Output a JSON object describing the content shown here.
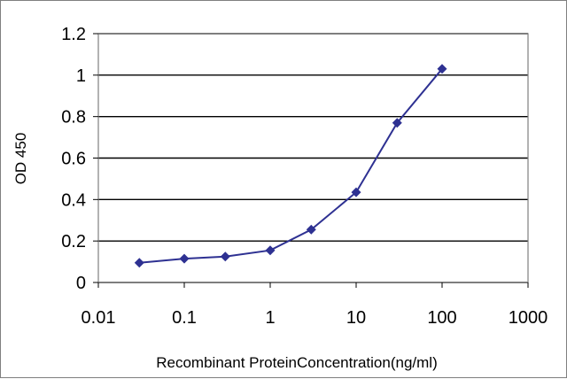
{
  "chart_data": {
    "type": "line",
    "title": "",
    "xlabel": "Recombinant ProteinConcentration(ng/ml)",
    "ylabel": "OD 450",
    "x_scale": "log",
    "xlim": [
      0.01,
      1000
    ],
    "ylim": [
      0,
      1.2
    ],
    "x_ticks": [
      "0.01",
      "0.1",
      "1",
      "10",
      "100",
      "1000"
    ],
    "y_ticks": [
      "0",
      "0.2",
      "0.4",
      "0.6",
      "0.8",
      "1",
      "1.2"
    ],
    "grid": "horizontal",
    "legend": "none",
    "series": [
      {
        "color": "#2e3192",
        "marker": "diamond",
        "x": [
          0.03,
          0.1,
          0.3,
          1,
          3,
          10,
          30,
          100
        ],
        "y": [
          0.095,
          0.115,
          0.125,
          0.155,
          0.255,
          0.435,
          0.77,
          1.03
        ]
      }
    ],
    "plot_background": "#ffffff",
    "grid_color": "#000000"
  }
}
